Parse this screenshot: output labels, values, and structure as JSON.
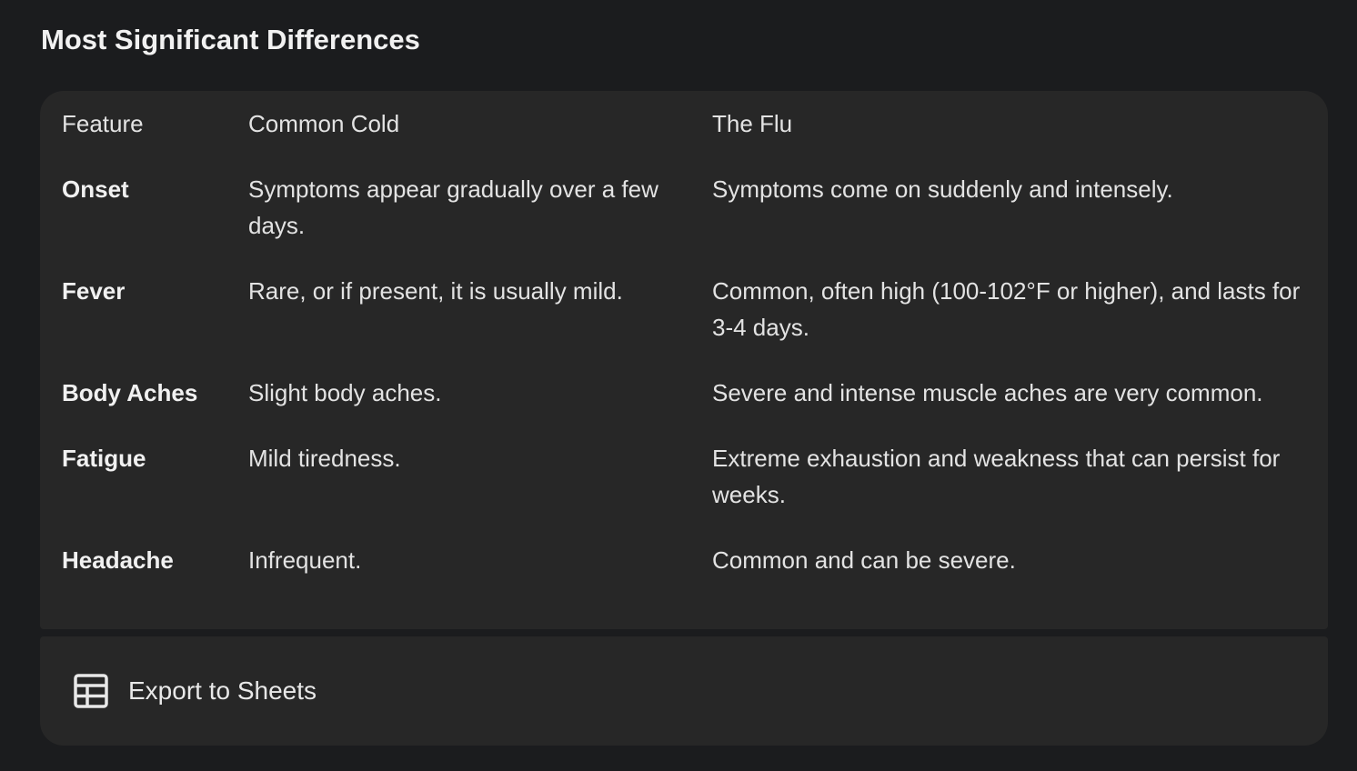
{
  "section": {
    "title": "Most Significant Differences"
  },
  "table": {
    "headers": [
      "Feature",
      "Common Cold",
      "The Flu"
    ],
    "rows": [
      {
        "feature": "Onset",
        "cold": "Symptoms appear gradually over a few days.",
        "flu": "Symptoms come on suddenly and intensely."
      },
      {
        "feature": "Fever",
        "cold": "Rare, or if present, it is usually mild.",
        "flu": "Common, often high (100-102°F or higher), and lasts for 3-4 days."
      },
      {
        "feature": "Body Aches",
        "cold": "Slight body aches.",
        "flu": "Severe and intense muscle aches are very common."
      },
      {
        "feature": "Fatigue",
        "cold": "Mild tiredness.",
        "flu": "Extreme exhaustion and weakness that can persist for weeks."
      },
      {
        "feature": "Headache",
        "cold": "Infrequent.",
        "flu": "Common and can be severe."
      }
    ]
  },
  "export": {
    "label": "Export to Sheets",
    "icon": "table-grid-icon"
  }
}
